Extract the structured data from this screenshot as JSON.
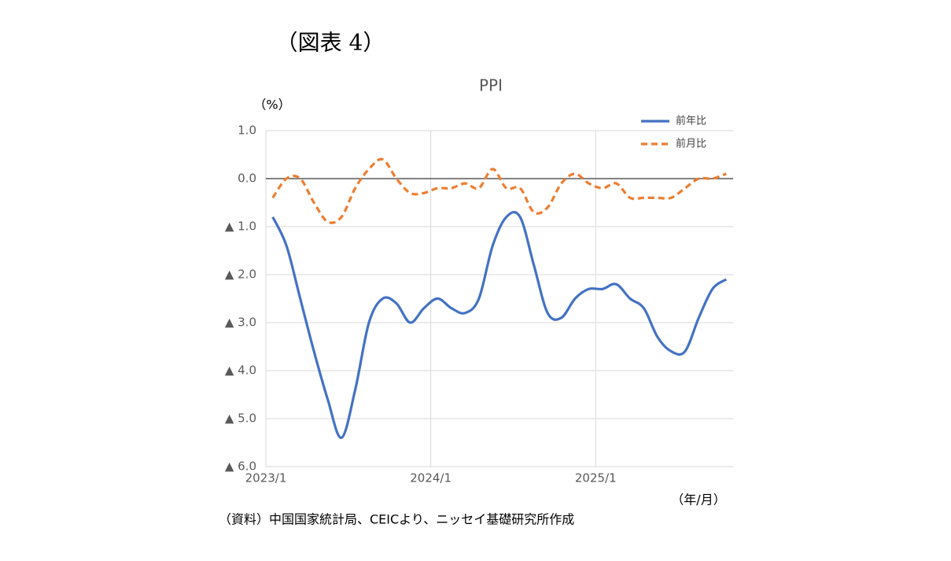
{
  "page_title": "（図表 4）",
  "chart_data": {
    "type": "line",
    "title": "PPI",
    "y_unit": "（%）",
    "x_unit": "（年/月）",
    "source": "（資料）中国国家統計局、CEICより、ニッセイ基礎研究所作成",
    "categories": [
      "2023/1",
      null,
      null,
      null,
      null,
      null,
      null,
      null,
      null,
      null,
      null,
      null,
      "2024/1",
      null,
      null,
      null,
      null,
      null,
      null,
      null,
      null,
      null,
      null,
      null,
      "2025/1",
      null,
      null,
      null,
      null,
      null,
      null,
      null,
      null,
      null
    ],
    "series": [
      {
        "name": "前年比",
        "color": "#4472c4",
        "dash": false,
        "values": [
          -0.8,
          -1.4,
          -2.5,
          -3.6,
          -4.6,
          -5.4,
          -4.4,
          -3.0,
          -2.5,
          -2.6,
          -3.0,
          -2.7,
          -2.5,
          -2.7,
          -2.8,
          -2.5,
          -1.4,
          -0.8,
          -0.8,
          -1.8,
          -2.8,
          -2.9,
          -2.5,
          -2.3,
          -2.3,
          -2.2,
          -2.5,
          -2.7,
          -3.3,
          -3.6,
          -3.6,
          -2.9,
          -2.3,
          -2.1
        ]
      },
      {
        "name": "前月比",
        "color": "#ed7d31",
        "dash": true,
        "values": [
          -0.4,
          0.0,
          0.0,
          -0.5,
          -0.9,
          -0.8,
          -0.2,
          0.2,
          0.4,
          0.0,
          -0.3,
          -0.3,
          -0.2,
          -0.2,
          -0.1,
          -0.2,
          0.2,
          -0.2,
          -0.2,
          -0.7,
          -0.6,
          -0.1,
          0.1,
          -0.1,
          -0.2,
          -0.1,
          -0.4,
          -0.4,
          -0.4,
          -0.4,
          -0.2,
          0.0,
          0.0,
          0.1
        ]
      }
    ],
    "ylim": [
      -6,
      1
    ],
    "yticks": [
      {
        "value": 1,
        "label": "1.0"
      },
      {
        "value": 0,
        "label": "0.0"
      },
      {
        "value": -1,
        "label": "▲ 1.0"
      },
      {
        "value": -2,
        "label": "▲ 2.0"
      },
      {
        "value": -3,
        "label": "▲ 3.0"
      },
      {
        "value": -4,
        "label": "▲ 4.0"
      },
      {
        "value": -5,
        "label": "▲ 5.0"
      },
      {
        "value": -6,
        "label": "▲ 6.0"
      }
    ],
    "grid": true,
    "legend": "top-right"
  }
}
